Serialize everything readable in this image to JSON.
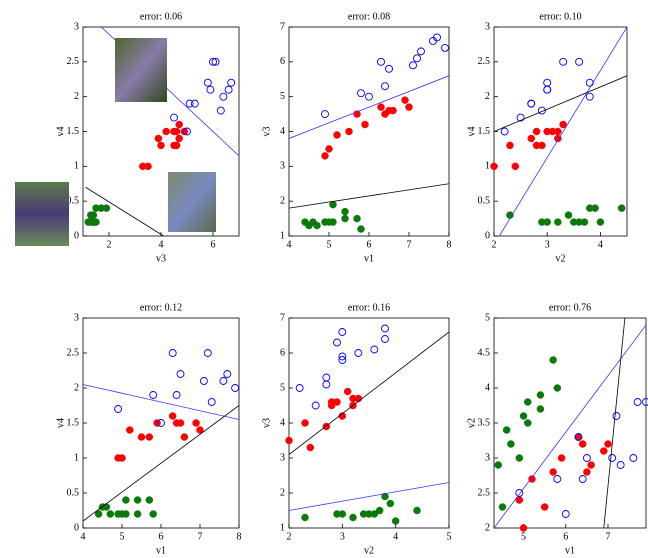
{
  "chart_data": [
    {
      "type": "scatter",
      "title": "error: 0.06",
      "xlabel": "v3",
      "ylabel": "v4",
      "xlim": [
        1,
        7
      ],
      "ylim": [
        0,
        3
      ],
      "xticks": [
        2,
        4,
        6
      ],
      "yticks": [
        0,
        0.5,
        1,
        1.5,
        2,
        2.5,
        3
      ],
      "series": [
        {
          "color": "#0a7a0a",
          "marker": "filled",
          "x": [
            1.4,
            1.4,
            1.3,
            1.4,
            1.7,
            1.4,
            1.4,
            1.5,
            1.2,
            1.5,
            1.9,
            1.3
          ],
          "y": [
            0.2,
            0.2,
            0.2,
            0.2,
            0.4,
            0.3,
            0.2,
            0.2,
            0.2,
            0.4,
            0.4,
            0.3
          ]
        },
        {
          "color": "#ff0000",
          "marker": "filled",
          "x": [
            4.7,
            4.5,
            4.9,
            4.0,
            4.6,
            4.5,
            4.7,
            3.3,
            4.6,
            3.9,
            3.5,
            4.2
          ],
          "y": [
            1.4,
            1.5,
            1.5,
            1.3,
            1.5,
            1.3,
            1.6,
            1.0,
            1.3,
            1.4,
            1.0,
            1.5
          ]
        },
        {
          "color": "#0000ff",
          "marker": "open",
          "x": [
            6.0,
            5.1,
            5.9,
            5.8,
            6.6,
            4.5,
            6.3,
            6.1,
            5.3,
            6.7,
            5.0,
            6.4
          ],
          "y": [
            2.5,
            1.9,
            2.1,
            2.2,
            2.1,
            1.7,
            1.8,
            2.5,
            1.9,
            2.2,
            1.5,
            2.0
          ]
        }
      ],
      "lines": [
        {
          "color": "#3333ff",
          "x": [
            1.7,
            7
          ],
          "y": [
            3,
            1.15
          ]
        },
        {
          "color": "#000000",
          "x": [
            1.1,
            4.1
          ],
          "y": [
            0.7,
            0
          ]
        }
      ]
    },
    {
      "type": "scatter",
      "title": "error: 0.08",
      "xlabel": "v1",
      "ylabel": "v3",
      "xlim": [
        4,
        8
      ],
      "ylim": [
        1,
        7
      ],
      "xticks": [
        4,
        5,
        6,
        7,
        8
      ],
      "yticks": [
        1,
        2,
        3,
        4,
        5,
        6,
        7
      ],
      "series": [
        {
          "color": "#0a7a0a",
          "marker": "filled",
          "x": [
            5.1,
            4.9,
            4.7,
            5.0,
            5.4,
            4.6,
            4.4,
            5.4,
            5.8,
            5.7,
            5.1,
            4.5
          ],
          "y": [
            1.4,
            1.4,
            1.3,
            1.4,
            1.7,
            1.4,
            1.4,
            1.5,
            1.2,
            1.5,
            1.9,
            1.3
          ]
        },
        {
          "color": "#ff0000",
          "marker": "filled",
          "x": [
            7.0,
            6.4,
            6.9,
            5.5,
            6.5,
            5.7,
            6.3,
            4.9,
            6.6,
            5.2,
            5.0,
            5.9
          ],
          "y": [
            4.7,
            4.5,
            4.9,
            4.0,
            4.6,
            4.5,
            4.7,
            3.3,
            4.6,
            3.9,
            3.5,
            4.2
          ]
        },
        {
          "color": "#0000ff",
          "marker": "open",
          "x": [
            6.3,
            5.8,
            7.1,
            6.5,
            7.6,
            4.9,
            7.3,
            7.2,
            6.4,
            7.7,
            6.0,
            7.9
          ],
          "y": [
            6.0,
            5.1,
            5.9,
            5.8,
            6.6,
            4.5,
            6.3,
            6.1,
            5.3,
            6.7,
            5.0,
            6.4
          ]
        }
      ],
      "lines": [
        {
          "color": "#3333ff",
          "x": [
            4,
            8
          ],
          "y": [
            3.8,
            5.6
          ]
        },
        {
          "color": "#000000",
          "x": [
            4,
            8
          ],
          "y": [
            1.8,
            2.5
          ]
        }
      ]
    },
    {
      "type": "scatter",
      "title": "error: 0.10",
      "xlabel": "v2",
      "ylabel": "v4",
      "xlim": [
        2,
        4.5
      ],
      "ylim": [
        0,
        3
      ],
      "xticks": [
        2,
        3,
        4
      ],
      "yticks": [
        0,
        0.5,
        1,
        1.5,
        2,
        2.5,
        3
      ],
      "series": [
        {
          "color": "#0a7a0a",
          "marker": "filled",
          "x": [
            3.5,
            3.0,
            3.2,
            3.6,
            3.9,
            3.4,
            2.9,
            3.7,
            4.0,
            4.4,
            3.8,
            2.3
          ],
          "y": [
            0.2,
            0.2,
            0.2,
            0.2,
            0.4,
            0.3,
            0.2,
            0.2,
            0.2,
            0.4,
            0.4,
            0.3
          ]
        },
        {
          "color": "#ff0000",
          "marker": "filled",
          "x": [
            3.2,
            3.2,
            3.1,
            2.3,
            2.8,
            2.8,
            3.3,
            2.4,
            2.9,
            2.7,
            2.0,
            3.0
          ],
          "y": [
            1.4,
            1.5,
            1.5,
            1.3,
            1.5,
            1.3,
            1.6,
            1.0,
            1.3,
            1.4,
            1.0,
            1.5
          ]
        },
        {
          "color": "#0000ff",
          "marker": "open",
          "x": [
            3.3,
            2.7,
            3.0,
            3.0,
            3.0,
            2.5,
            2.9,
            3.6,
            2.7,
            3.8,
            2.2,
            3.8
          ],
          "y": [
            2.5,
            1.9,
            2.1,
            2.2,
            2.1,
            1.7,
            1.8,
            2.5,
            1.9,
            2.2,
            1.5,
            2.0
          ]
        }
      ],
      "lines": [
        {
          "color": "#3333ff",
          "x": [
            2.1,
            4.5
          ],
          "y": [
            0,
            3
          ]
        },
        {
          "color": "#000000",
          "x": [
            2,
            4.5
          ],
          "y": [
            1.5,
            2.3
          ]
        }
      ]
    },
    {
      "type": "scatter",
      "title": "error: 0.12",
      "xlabel": "v1",
      "ylabel": "v4",
      "xlim": [
        4,
        8
      ],
      "ylim": [
        0,
        3
      ],
      "xticks": [
        4,
        5,
        6,
        7,
        8
      ],
      "yticks": [
        0,
        0.5,
        1,
        1.5,
        2,
        2.5,
        3
      ],
      "series": [
        {
          "color": "#0a7a0a",
          "marker": "filled",
          "x": [
            5.1,
            4.9,
            4.7,
            5.0,
            5.4,
            4.6,
            4.4,
            5.4,
            5.8,
            5.7,
            5.1,
            4.5
          ],
          "y": [
            0.2,
            0.2,
            0.2,
            0.2,
            0.4,
            0.3,
            0.2,
            0.2,
            0.2,
            0.4,
            0.4,
            0.3
          ]
        },
        {
          "color": "#ff0000",
          "marker": "filled",
          "x": [
            7.0,
            6.4,
            6.9,
            5.5,
            6.5,
            5.7,
            6.3,
            4.9,
            6.6,
            5.2,
            5.0,
            5.9
          ],
          "y": [
            1.4,
            1.5,
            1.5,
            1.3,
            1.5,
            1.3,
            1.6,
            1.0,
            1.3,
            1.4,
            1.0,
            1.5
          ]
        },
        {
          "color": "#0000ff",
          "marker": "open",
          "x": [
            6.3,
            5.8,
            7.1,
            6.5,
            7.6,
            4.9,
            7.3,
            7.2,
            6.4,
            7.7,
            6.0,
            7.9
          ],
          "y": [
            2.5,
            1.9,
            2.1,
            2.2,
            2.1,
            1.7,
            1.8,
            2.5,
            1.9,
            2.2,
            1.5,
            2.0
          ]
        }
      ],
      "lines": [
        {
          "color": "#3333ff",
          "x": [
            4,
            8
          ],
          "y": [
            2.05,
            1.55
          ]
        },
        {
          "color": "#000000",
          "x": [
            4,
            8
          ],
          "y": [
            0.1,
            1.75
          ]
        }
      ]
    },
    {
      "type": "scatter",
      "title": "error: 0.16",
      "xlabel": "v2",
      "ylabel": "v3",
      "xlim": [
        2,
        5
      ],
      "ylim": [
        1,
        7
      ],
      "xticks": [
        2,
        3,
        4,
        5
      ],
      "yticks": [
        1,
        2,
        3,
        4,
        5,
        6,
        7
      ],
      "series": [
        {
          "color": "#0a7a0a",
          "marker": "filled",
          "x": [
            3.5,
            3.0,
            3.2,
            3.6,
            3.9,
            3.4,
            2.9,
            3.7,
            4.0,
            4.4,
            3.8,
            2.3
          ],
          "y": [
            1.4,
            1.4,
            1.3,
            1.4,
            1.7,
            1.4,
            1.4,
            1.5,
            1.2,
            1.5,
            1.9,
            1.3
          ]
        },
        {
          "color": "#ff0000",
          "marker": "filled",
          "x": [
            3.2,
            3.2,
            3.1,
            2.3,
            2.8,
            2.8,
            3.3,
            2.4,
            2.9,
            2.7,
            2.0,
            3.0
          ],
          "y": [
            4.7,
            4.5,
            4.9,
            4.0,
            4.6,
            4.5,
            4.7,
            3.3,
            4.6,
            3.9,
            3.5,
            4.2
          ]
        },
        {
          "color": "#0000ff",
          "marker": "open",
          "x": [
            3.3,
            2.7,
            3.0,
            3.0,
            3.0,
            2.5,
            2.9,
            3.6,
            2.7,
            3.8,
            2.2,
            3.8
          ],
          "y": [
            6.0,
            5.1,
            5.9,
            5.8,
            6.6,
            4.5,
            6.3,
            6.1,
            5.3,
            6.7,
            5.0,
            6.4
          ]
        }
      ],
      "lines": [
        {
          "color": "#3333ff",
          "x": [
            2,
            5
          ],
          "y": [
            1.5,
            2.3
          ]
        },
        {
          "color": "#000000",
          "x": [
            2,
            5
          ],
          "y": [
            3.1,
            6.6
          ]
        }
      ]
    },
    {
      "type": "scatter",
      "title": "error: 0.76",
      "xlabel": "v1",
      "ylabel": "v2",
      "xlim": [
        4.3,
        7.9
      ],
      "ylim": [
        2,
        5
      ],
      "xticks": [
        5,
        6,
        7
      ],
      "yticks": [
        2,
        2.5,
        3,
        3.5,
        4,
        4.5,
        5
      ],
      "series": [
        {
          "color": "#0a7a0a",
          "marker": "filled",
          "x": [
            5.1,
            4.9,
            4.7,
            5.0,
            5.4,
            4.6,
            4.4,
            5.4,
            5.8,
            5.7,
            5.1,
            4.5
          ],
          "y": [
            3.5,
            3.0,
            3.2,
            3.6,
            3.9,
            3.4,
            2.9,
            3.7,
            4.0,
            4.4,
            3.8,
            2.3
          ]
        },
        {
          "color": "#ff0000",
          "marker": "filled",
          "x": [
            7.0,
            6.4,
            6.9,
            5.5,
            6.5,
            5.7,
            6.3,
            4.9,
            6.6,
            5.2,
            5.0,
            5.9
          ],
          "y": [
            3.2,
            3.2,
            3.1,
            2.3,
            2.8,
            2.8,
            3.3,
            2.4,
            2.9,
            2.7,
            2.0,
            3.0
          ]
        },
        {
          "color": "#0000ff",
          "marker": "open",
          "x": [
            6.3,
            5.8,
            7.1,
            6.5,
            7.6,
            4.9,
            7.3,
            7.2,
            6.4,
            7.7,
            6.0,
            7.9
          ],
          "y": [
            3.3,
            2.7,
            3.0,
            3.0,
            3.0,
            2.5,
            2.9,
            3.6,
            2.7,
            3.8,
            2.2,
            3.8
          ]
        }
      ],
      "lines": [
        {
          "color": "#3333ff",
          "x": [
            4.3,
            7.9
          ],
          "y": [
            2,
            4.9
          ]
        },
        {
          "color": "#000000",
          "x": [
            6.9,
            7.4
          ],
          "y": [
            2,
            5
          ]
        }
      ]
    }
  ]
}
